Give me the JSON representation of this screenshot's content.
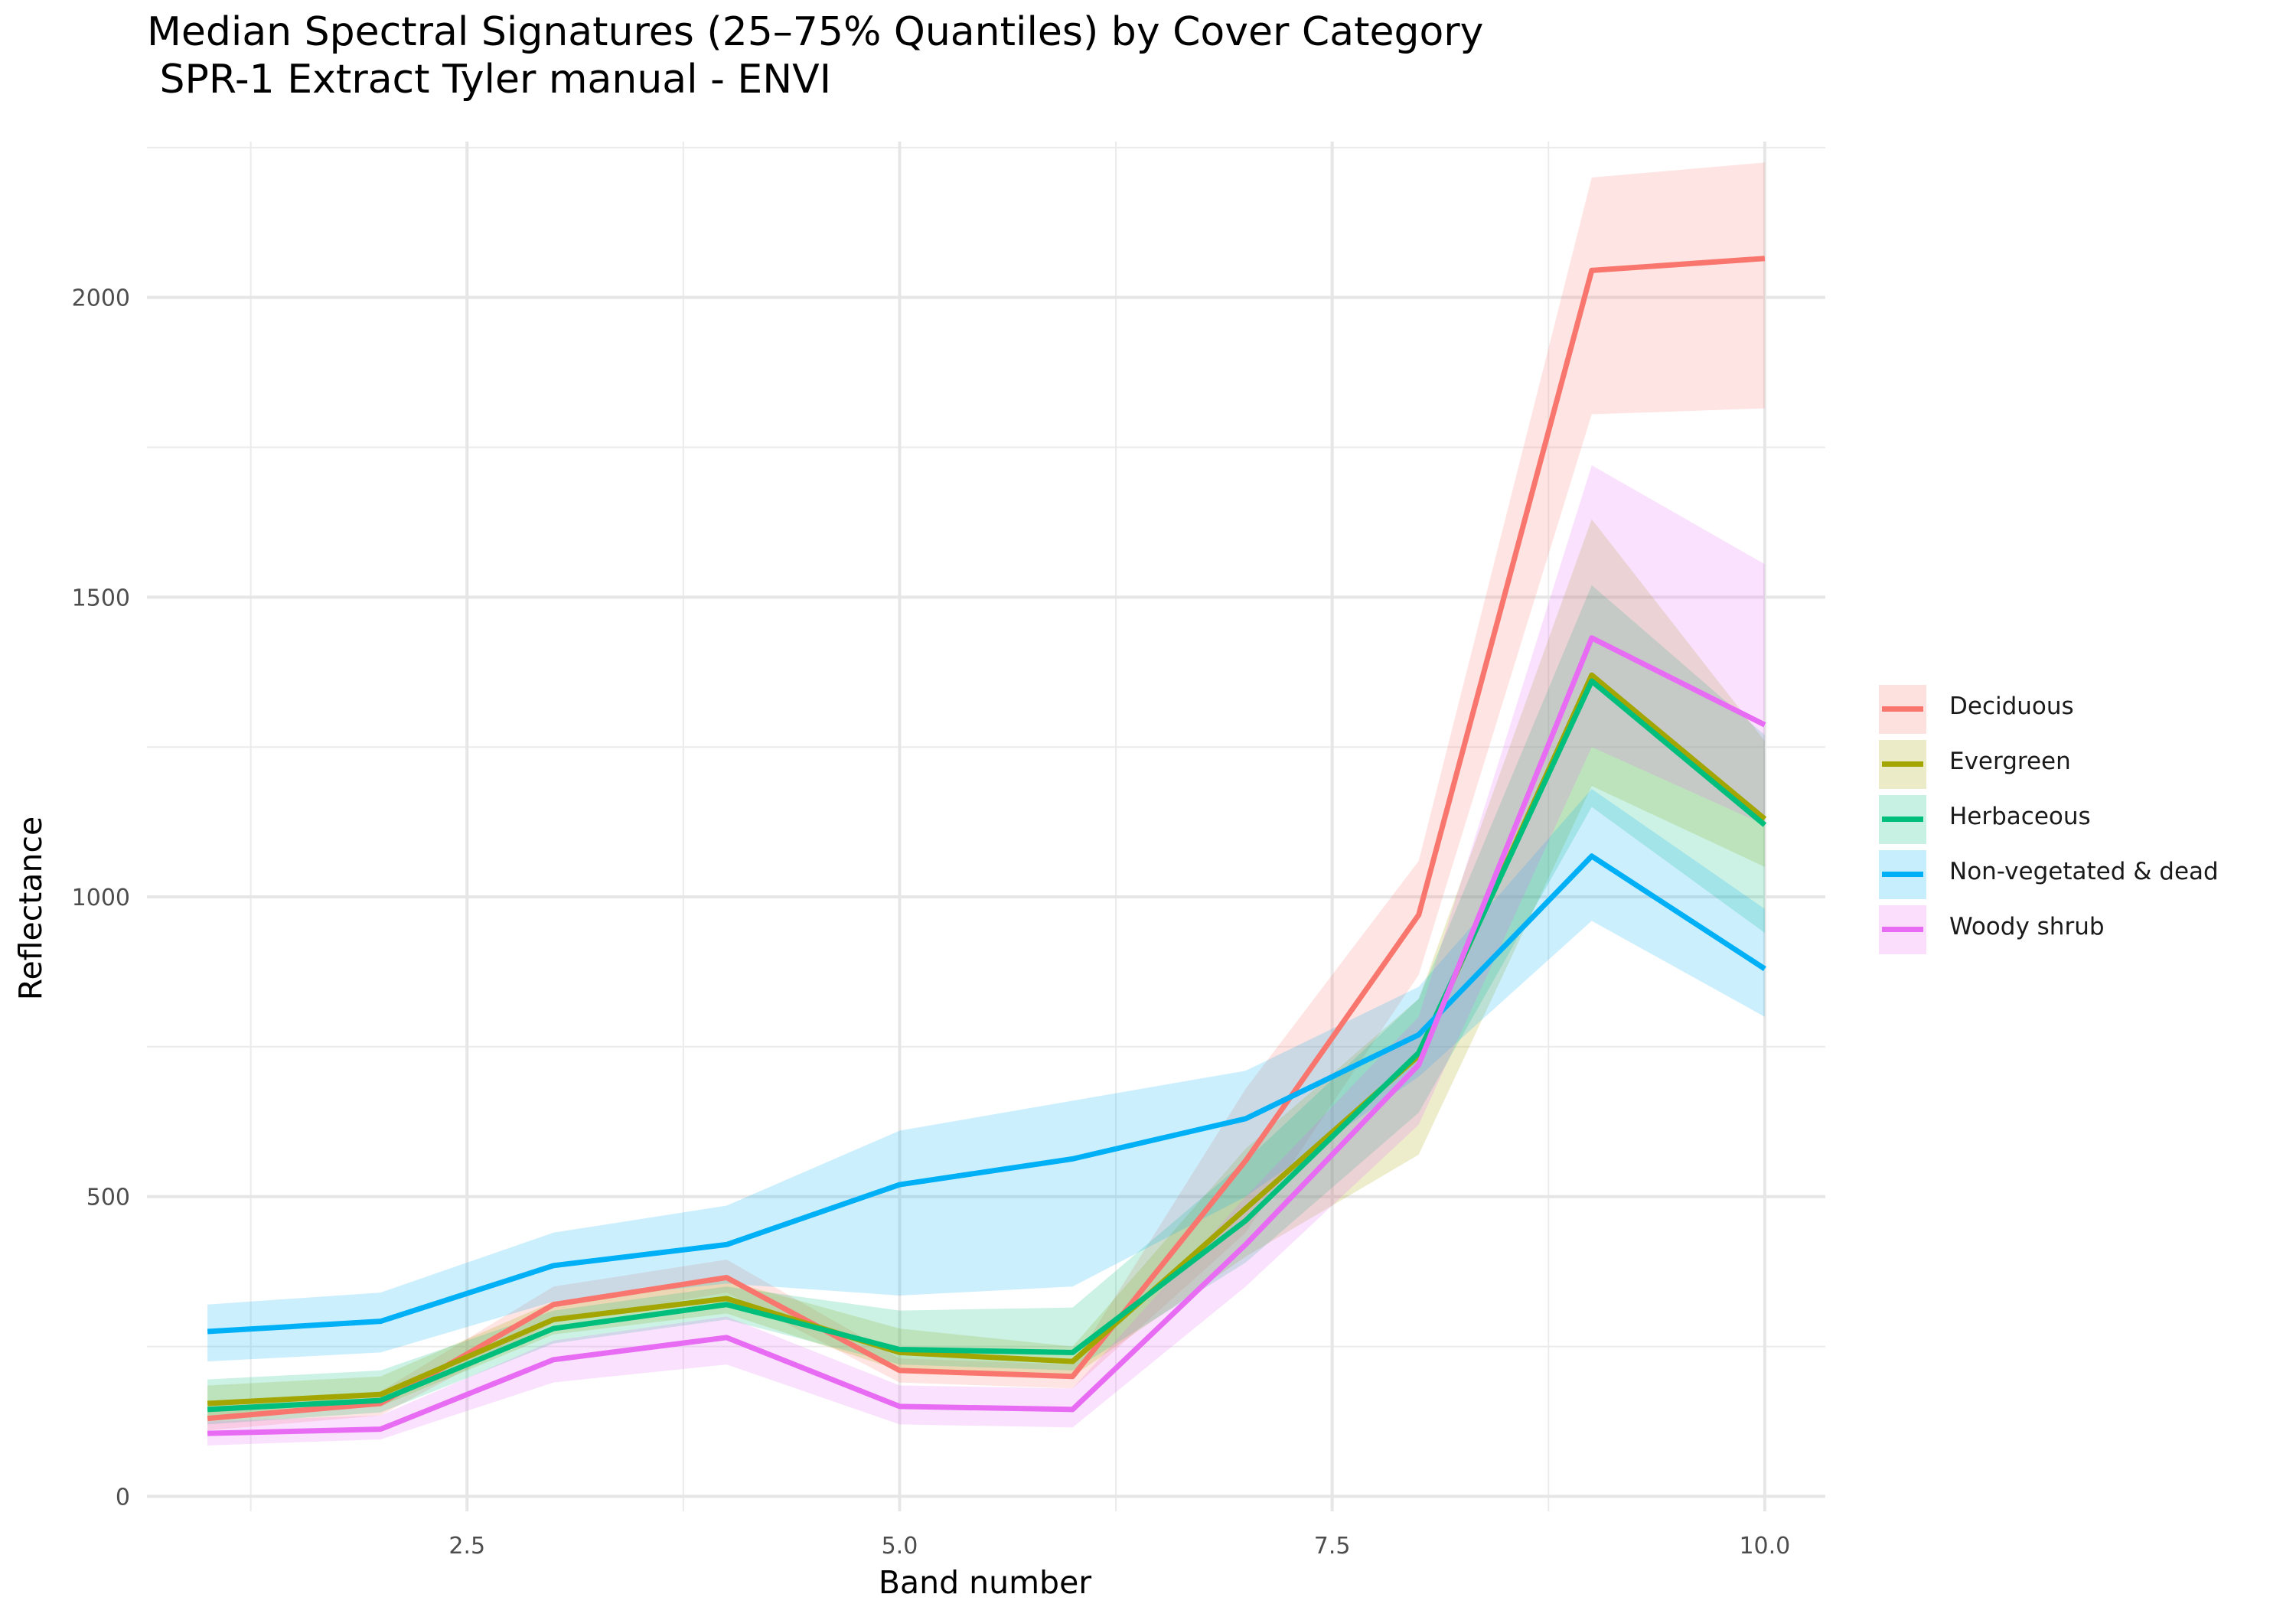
{
  "chart_data": {
    "type": "area",
    "title": "Median Spectral Signatures (25–75% Quantiles) by Cover Category",
    "subtitle": " SPR-1 Extract Tyler manual - ENVI",
    "xlabel": "Band number",
    "ylabel": "Reflectance",
    "xlim": [
      0.65,
      10.35
    ],
    "ylim": [
      -25,
      2260
    ],
    "x_ticks": [
      2.5,
      5.0,
      7.5,
      10.0
    ],
    "x_tick_labels": [
      "2.5",
      "5.0",
      "7.5",
      "10.0"
    ],
    "y_ticks": [
      0,
      500,
      1000,
      1500,
      2000
    ],
    "y_tick_labels": [
      "0",
      "500",
      "1000",
      "1500",
      "2000"
    ],
    "grid": true,
    "legend_position": "right",
    "x": [
      1,
      2,
      3,
      4,
      5,
      6,
      7,
      8,
      9,
      10
    ],
    "series": [
      {
        "name": "Deciduous",
        "color": "#F8766D",
        "median": [
          130,
          155,
          320,
          365,
          210,
          200,
          560,
          970,
          2045,
          2065
        ],
        "q25": [
          110,
          135,
          290,
          340,
          190,
          180,
          440,
          870,
          1805,
          1815
        ],
        "q75": [
          150,
          175,
          350,
          395,
          230,
          220,
          680,
          1060,
          2200,
          2225
        ]
      },
      {
        "name": "Evergreen",
        "color": "#A3A500",
        "median": [
          155,
          170,
          295,
          330,
          240,
          225,
          480,
          735,
          1370,
          1130
        ],
        "q25": [
          130,
          150,
          270,
          305,
          210,
          200,
          400,
          570,
          1185,
          1050
        ],
        "q75": [
          185,
          200,
          325,
          360,
          280,
          250,
          580,
          830,
          1630,
          1260
        ]
      },
      {
        "name": "Herbaceous",
        "color": "#00BF7D",
        "median": [
          145,
          160,
          280,
          320,
          245,
          240,
          460,
          740,
          1360,
          1120
        ],
        "q25": [
          120,
          140,
          255,
          295,
          220,
          210,
          390,
          640,
          1150,
          940
        ],
        "q75": [
          195,
          210,
          310,
          350,
          310,
          315,
          560,
          830,
          1520,
          1270
        ]
      },
      {
        "name": "Non-vegetated & dead",
        "color": "#00B0F6",
        "median": [
          275,
          292,
          385,
          420,
          520,
          563,
          630,
          770,
          1068,
          880
        ],
        "q25": [
          225,
          240,
          325,
          355,
          335,
          350,
          500,
          700,
          960,
          800
        ],
        "q75": [
          320,
          340,
          440,
          485,
          610,
          660,
          710,
          850,
          1180,
          980
        ]
      },
      {
        "name": "Woody shrub",
        "color": "#E76BF3",
        "median": [
          105,
          112,
          228,
          265,
          150,
          145,
          420,
          720,
          1432,
          1287
        ],
        "q25": [
          85,
          95,
          190,
          220,
          120,
          115,
          350,
          620,
          1250,
          1120
        ],
        "q75": [
          125,
          135,
          260,
          300,
          185,
          180,
          500,
          800,
          1720,
          1555
        ]
      }
    ]
  }
}
